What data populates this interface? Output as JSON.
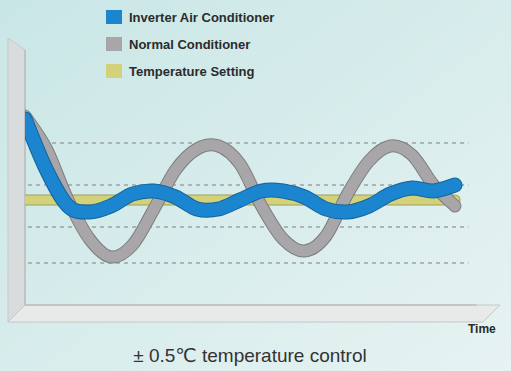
{
  "chart_data": {
    "type": "line",
    "title": "± 0.5℃ temperature control",
    "x_label": "Time",
    "x": [
      0,
      0.5,
      1,
      1.5,
      2,
      2.5,
      3,
      3.5,
      4,
      4.5,
      5,
      5.5,
      6,
      6.5,
      7,
      7.5,
      8,
      8.5,
      9,
      9.5,
      10
    ],
    "series": [
      {
        "name": "Inverter Air Conditioner",
        "color": "#1b86cf",
        "values": [
          2.7,
          1.0,
          -0.2,
          -0.4,
          -0.2,
          0.2,
          0.3,
          0.1,
          -0.3,
          -0.3,
          0,
          0.3,
          0.3,
          0.1,
          -0.3,
          -0.4,
          -0.2,
          0.2,
          0.4,
          0.3,
          0.5
        ]
      },
      {
        "name": "Normal Conditioner",
        "color": "#a8a6a8",
        "values": [
          2.8,
          1.7,
          0,
          -1.3,
          -1.9,
          -1.5,
          -0.3,
          1.0,
          1.7,
          1.8,
          1.2,
          -0.2,
          -1.3,
          -1.7,
          -1.2,
          0.2,
          1.3,
          1.8,
          1.5,
          0.5,
          -0.2
        ]
      },
      {
        "name": "Temperature Setting",
        "color": "#d3d27a",
        "values": [
          0,
          0,
          0,
          0,
          0,
          0,
          0,
          0,
          0,
          0,
          0,
          0,
          0,
          0,
          0,
          0,
          0,
          0,
          0,
          0,
          0
        ]
      }
    ],
    "xlim": [
      0,
      10.5
    ],
    "ylim": [
      -3.5,
      5
    ],
    "yticks": [
      1.9,
      0.5,
      -0.9,
      -2.1
    ],
    "grid": true,
    "tick_labels": false,
    "legend": "top"
  }
}
